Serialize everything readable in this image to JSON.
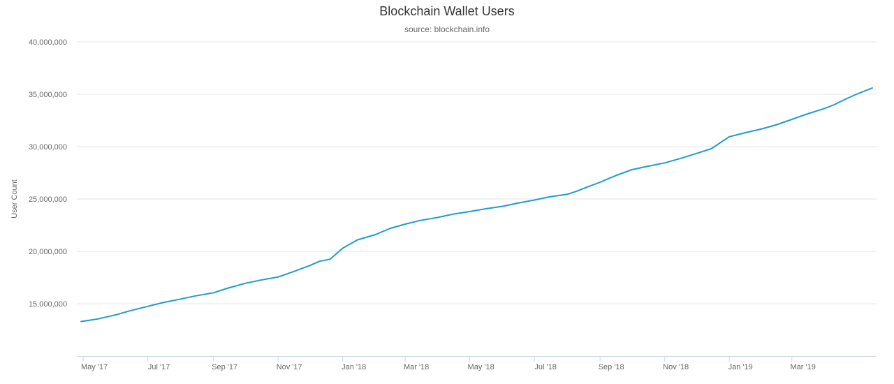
{
  "chart_data": {
    "type": "line",
    "title": "Blockchain Wallet Users",
    "subtitle": "source: blockchain.info",
    "ylabel": "User Count",
    "xlabel": "",
    "ylim": [
      10000000,
      40000000
    ],
    "yticks": [
      15000000,
      20000000,
      25000000,
      30000000,
      35000000,
      40000000
    ],
    "ytick_labels": [
      "15,000,000",
      "20,000,000",
      "25,000,000",
      "30,000,000",
      "35,000,000",
      "40,000,000"
    ],
    "xlim": [
      "2017-04-25",
      "2019-05-20"
    ],
    "xticks": [
      "2017-05-01",
      "2017-07-01",
      "2017-09-01",
      "2017-11-01",
      "2018-01-01",
      "2018-03-01",
      "2018-05-01",
      "2018-07-01",
      "2018-09-01",
      "2018-11-01",
      "2019-01-01",
      "2019-03-01"
    ],
    "xtick_labels": [
      "May '17",
      "Jul '17",
      "Sep '17",
      "Nov '17",
      "Jan '18",
      "Mar '18",
      "May '18",
      "Jul '18",
      "Sep '18",
      "Nov '18",
      "Jan '19",
      "Mar '19"
    ],
    "grid": true,
    "line_color": "#1f9bce",
    "series": [
      {
        "x": [
          "2017-04-29",
          "2017-05-15",
          "2017-06-01",
          "2017-06-15",
          "2017-07-01",
          "2017-07-15",
          "2017-08-01",
          "2017-08-15",
          "2017-09-01",
          "2017-09-15",
          "2017-10-01",
          "2017-10-15",
          "2017-11-01",
          "2017-11-15",
          "2017-12-01",
          "2017-12-10",
          "2017-12-20",
          "2018-01-01",
          "2018-01-15",
          "2018-02-01",
          "2018-02-15",
          "2018-03-01",
          "2018-03-15",
          "2018-04-01",
          "2018-04-15",
          "2018-05-01",
          "2018-05-15",
          "2018-06-01",
          "2018-06-15",
          "2018-07-01",
          "2018-07-15",
          "2018-08-01",
          "2018-08-10",
          "2018-08-20",
          "2018-09-01",
          "2018-09-15",
          "2018-10-01",
          "2018-10-15",
          "2018-11-01",
          "2018-11-15",
          "2018-12-01",
          "2018-12-15",
          "2019-01-01",
          "2019-01-15",
          "2019-02-01",
          "2019-02-15",
          "2019-03-01",
          "2019-03-15",
          "2019-04-01",
          "2019-04-10",
          "2019-04-20",
          "2019-05-01",
          "2019-05-16"
        ],
        "values": [
          13300000,
          13550000,
          13950000,
          14350000,
          14750000,
          15100000,
          15450000,
          15750000,
          16050000,
          16500000,
          16950000,
          17250000,
          17550000,
          18050000,
          18650000,
          19050000,
          19250000,
          20300000,
          21100000,
          21600000,
          22200000,
          22600000,
          22950000,
          23250000,
          23550000,
          23800000,
          24050000,
          24300000,
          24600000,
          24900000,
          25200000,
          25450000,
          25750000,
          26150000,
          26600000,
          27200000,
          27800000,
          28100000,
          28450000,
          28850000,
          29350000,
          29800000,
          30950000,
          31300000,
          31700000,
          32100000,
          32600000,
          33100000,
          33650000,
          34000000,
          34500000,
          35000000,
          35600000
        ]
      }
    ]
  }
}
